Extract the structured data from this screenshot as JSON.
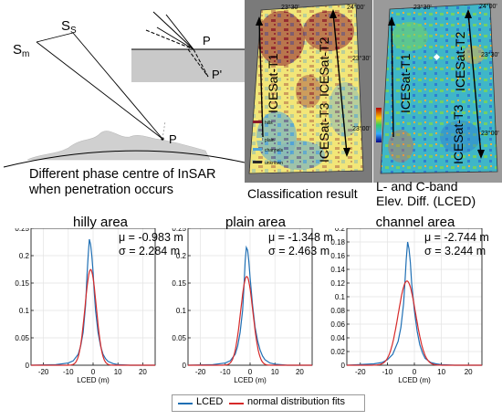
{
  "geometry_panel": {
    "labels": {
      "s_m": "S",
      "s_m_sub": "m",
      "s_s": "S",
      "s_s_sub": "S",
      "p_ground": "P",
      "p_inset": "P",
      "p_prime": "P'"
    },
    "caption_line1": "Different phase centre of InSAR",
    "caption_line2": "when penetration occurs"
  },
  "classification_map": {
    "lon_ticks": [
      "23°30'",
      "24°00'"
    ],
    "lat_ticks": [
      "23°30'",
      "23°00'"
    ],
    "track_labels": [
      "ICESat-T1",
      "ICESat-T2",
      "ICESat-T3"
    ],
    "legend": [
      {
        "label": "hills",
        "color": "#8b1a2a"
      },
      {
        "label": "plain",
        "color": "#f2e678"
      },
      {
        "label": "channels",
        "color": "#4fa3d8"
      },
      {
        "label": "unknown",
        "color": "#2a2a2a"
      }
    ],
    "caption": "Classification result"
  },
  "lced_map": {
    "lon_ticks": [
      "23°30'",
      "24°00'"
    ],
    "lat_ticks": [
      "23°30'",
      "23°00'"
    ],
    "track_labels": [
      "ICESat-T1",
      "ICESat-T2",
      "ICESat-T3"
    ],
    "caption_line1": "L- and C-band",
    "caption_line2": "Elev. Diff. (LCED)"
  },
  "legend": {
    "series": [
      {
        "label": "LCED",
        "color": "#1f6fb4"
      },
      {
        "label": "normal distribution fits",
        "color": "#d62a2a"
      }
    ]
  },
  "chart_data": [
    {
      "type": "line",
      "title": "hilly area",
      "xlabel": "LCED (m)",
      "ylabel": "",
      "xlim": [
        -25,
        25
      ],
      "ylim": [
        0,
        0.25
      ],
      "xticks": [
        -20,
        -10,
        0,
        10,
        20
      ],
      "yticks": [
        0,
        0.05,
        0.1,
        0.15,
        0.2,
        0.25
      ],
      "grid": true,
      "mu_text": "μ = -0.983 m",
      "sigma_text": "σ = 2.284 m",
      "series": [
        {
          "name": "LCED",
          "x": [
            -25,
            -15,
            -10,
            -8,
            -6,
            -5,
            -4,
            -3,
            -2.5,
            -2,
            -1.5,
            -1,
            -0.5,
            0,
            0.5,
            1,
            2,
            3,
            4,
            5,
            6,
            8,
            10,
            15,
            25
          ],
          "y": [
            0,
            0.001,
            0.004,
            0.008,
            0.02,
            0.035,
            0.06,
            0.11,
            0.16,
            0.2,
            0.23,
            0.22,
            0.2,
            0.17,
            0.13,
            0.1,
            0.06,
            0.035,
            0.02,
            0.012,
            0.007,
            0.003,
            0.001,
            0,
            0
          ]
        },
        {
          "name": "normal distribution fits",
          "mu": -0.983,
          "sigma": 2.284
        }
      ]
    },
    {
      "type": "line",
      "title": "plain area",
      "xlabel": "LCED (m)",
      "ylabel": "",
      "xlim": [
        -25,
        25
      ],
      "ylim": [
        0,
        0.25
      ],
      "xticks": [
        -20,
        -10,
        0,
        10,
        20
      ],
      "yticks": [
        0,
        0.05,
        0.1,
        0.15,
        0.2,
        0.25
      ],
      "grid": true,
      "mu_text": "μ = -1.348 m",
      "sigma_text": "σ = 2.463 m",
      "series": [
        {
          "name": "LCED",
          "x": [
            -25,
            -15,
            -10,
            -8,
            -6,
            -5,
            -4,
            -3,
            -2.5,
            -2,
            -1.5,
            -1,
            -0.5,
            0,
            1,
            2,
            3,
            4,
            5,
            6,
            8,
            10,
            15,
            25
          ],
          "y": [
            0,
            0.001,
            0.004,
            0.008,
            0.02,
            0.035,
            0.06,
            0.1,
            0.14,
            0.19,
            0.215,
            0.21,
            0.19,
            0.16,
            0.11,
            0.07,
            0.045,
            0.028,
            0.017,
            0.01,
            0.004,
            0.002,
            0,
            0
          ]
        },
        {
          "name": "normal distribution fits",
          "mu": -1.348,
          "sigma": 2.463
        }
      ]
    },
    {
      "type": "line",
      "title": "channel area",
      "xlabel": "LCED (m)",
      "ylabel": "",
      "xlim": [
        -25,
        25
      ],
      "ylim": [
        0,
        0.2
      ],
      "xticks": [
        -20,
        -10,
        0,
        10,
        20
      ],
      "yticks": [
        0,
        0.02,
        0.04,
        0.06,
        0.08,
        0.1,
        0.12,
        0.14,
        0.16,
        0.18,
        0.2
      ],
      "grid": true,
      "mu_text": "μ = -2.744 m",
      "sigma_text": "σ = 3.244 m",
      "series": [
        {
          "name": "LCED",
          "x": [
            -25,
            -15,
            -12,
            -10,
            -8,
            -6,
            -5,
            -4,
            -3.5,
            -3,
            -2.5,
            -2,
            -1.5,
            -1,
            0,
            1,
            2,
            3,
            4,
            6,
            8,
            10,
            15,
            25
          ],
          "y": [
            0,
            0.002,
            0.004,
            0.008,
            0.016,
            0.035,
            0.055,
            0.09,
            0.12,
            0.155,
            0.18,
            0.17,
            0.15,
            0.12,
            0.08,
            0.05,
            0.03,
            0.018,
            0.01,
            0.004,
            0.002,
            0.001,
            0,
            0
          ]
        },
        {
          "name": "normal distribution fits",
          "mu": -2.744,
          "sigma": 3.244
        }
      ]
    }
  ]
}
